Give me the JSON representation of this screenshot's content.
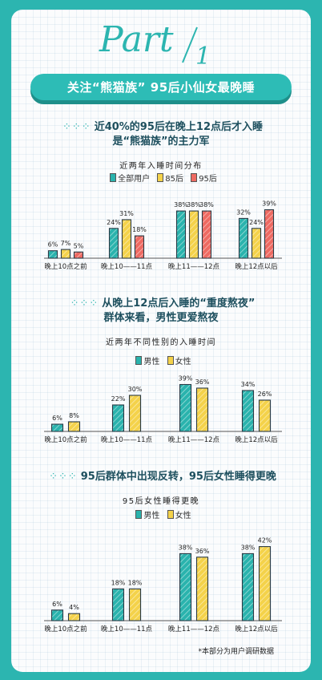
{
  "header": {
    "part_word": "Part",
    "part_number": "1",
    "banner": "关注“熊猫族” 95后小仙女最晚睡"
  },
  "sections": [
    {
      "title_line1": "近40%的95后在晚上12点后才入睡",
      "title_line2": "是“熊猫族”的主力军"
    },
    {
      "title_line1": "从晚上12点后入睡的“重度熬夜”",
      "title_line2": "群体来看，男性更爱熬夜"
    },
    {
      "title_line1": "95后群体中出现反转，95后女性睡得更晚",
      "title_line2": ""
    }
  ],
  "footnote": "*本部分为用户调研数据",
  "colors": {
    "teal": "#2ab3ad",
    "yellow": "#f4d24a",
    "red": "#ee6a62",
    "outline": "#2b3b46"
  },
  "chart_data": [
    {
      "type": "bar",
      "title": "近两年入睡时间分布",
      "categories": [
        "晚上10点之前",
        "晚上10——11点",
        "晚上11——12点",
        "晚上12点以后"
      ],
      "series": [
        {
          "name": "全部用户",
          "values": [
            6,
            24,
            38,
            32
          ],
          "labels": [
            "6%",
            "24%",
            "38%",
            "32%"
          ],
          "color": "#2ab3ad"
        },
        {
          "name": "85后",
          "values": [
            7,
            31,
            38,
            24
          ],
          "labels": [
            "7%",
            "31%",
            "38%",
            "24%"
          ],
          "color": "#f4d24a"
        },
        {
          "name": "95后",
          "values": [
            5,
            18,
            38,
            39
          ],
          "labels": [
            "5%",
            "18%",
            "38%",
            "39%"
          ],
          "color": "#ee6a62"
        }
      ]
    },
    {
      "type": "bar",
      "title": "近两年不同性别的入睡时间",
      "categories": [
        "晚上10点之前",
        "晚上10——11点",
        "晚上11——12点",
        "晚上12点以后"
      ],
      "series": [
        {
          "name": "男性",
          "values": [
            6,
            22,
            39,
            34
          ],
          "labels": [
            "6%",
            "22%",
            "39%",
            "34%"
          ],
          "color": "#2ab3ad"
        },
        {
          "name": "女性",
          "values": [
            8,
            30,
            36,
            26
          ],
          "labels": [
            "8%",
            "30%",
            "36%",
            "26%"
          ],
          "color": "#f4d24a"
        }
      ]
    },
    {
      "type": "bar",
      "title": "95后女性睡得更晚",
      "categories": [
        "晚上10点之前",
        "晚上10——11点",
        "晚上11——12点",
        "晚上12点以后"
      ],
      "series": [
        {
          "name": "男性",
          "values": [
            6,
            18,
            38,
            38
          ],
          "labels": [
            "6%",
            "18%",
            "38%",
            "38%"
          ],
          "color": "#2ab3ad"
        },
        {
          "name": "女性",
          "values": [
            4,
            18,
            36,
            42
          ],
          "labels": [
            "4%",
            "18%",
            "36%",
            "42%"
          ],
          "color": "#f4d24a"
        }
      ]
    }
  ]
}
